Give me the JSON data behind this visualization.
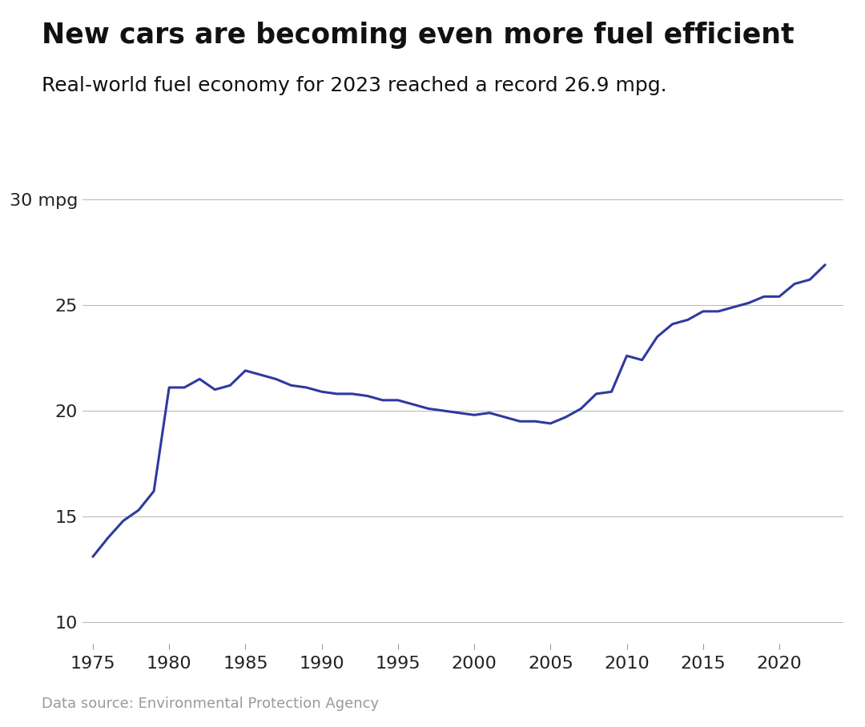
{
  "title": "New cars are becoming even more fuel efficient",
  "subtitle": "Real-world fuel economy for 2023 reached a record 26.9 mpg.",
  "footnote": "Data source: Environmental Protection Agency",
  "line_color": "#2e3a9e",
  "line_width": 2.2,
  "background_color": "#ffffff",
  "grid_color": "#bbbbbb",
  "ytick_labels": [
    "10",
    "15",
    "20",
    "25",
    "30 mpg"
  ],
  "yticks": [
    10,
    15,
    20,
    25,
    30
  ],
  "xticks": [
    1975,
    1980,
    1985,
    1990,
    1995,
    2000,
    2005,
    2010,
    2015,
    2020
  ],
  "years": [
    1975,
    1976,
    1977,
    1978,
    1979,
    1980,
    1981,
    1982,
    1983,
    1984,
    1985,
    1986,
    1987,
    1988,
    1989,
    1990,
    1991,
    1992,
    1993,
    1994,
    1995,
    1996,
    1997,
    1998,
    1999,
    2000,
    2001,
    2002,
    2003,
    2004,
    2005,
    2006,
    2007,
    2008,
    2009,
    2010,
    2011,
    2012,
    2013,
    2014,
    2015,
    2016,
    2017,
    2018,
    2019,
    2020,
    2021,
    2022,
    2023
  ],
  "mpg": [
    13.1,
    14.0,
    14.8,
    15.3,
    16.2,
    21.1,
    21.1,
    21.5,
    21.0,
    21.2,
    21.9,
    21.7,
    21.5,
    21.2,
    21.1,
    20.9,
    20.8,
    20.8,
    20.7,
    20.5,
    20.5,
    20.3,
    20.1,
    20.0,
    19.9,
    19.8,
    19.9,
    19.7,
    19.5,
    19.5,
    19.4,
    19.7,
    20.1,
    20.8,
    20.9,
    22.6,
    22.4,
    23.5,
    24.1,
    24.3,
    24.7,
    24.7,
    24.9,
    25.1,
    25.4,
    25.4,
    26.0,
    26.2,
    26.9
  ]
}
